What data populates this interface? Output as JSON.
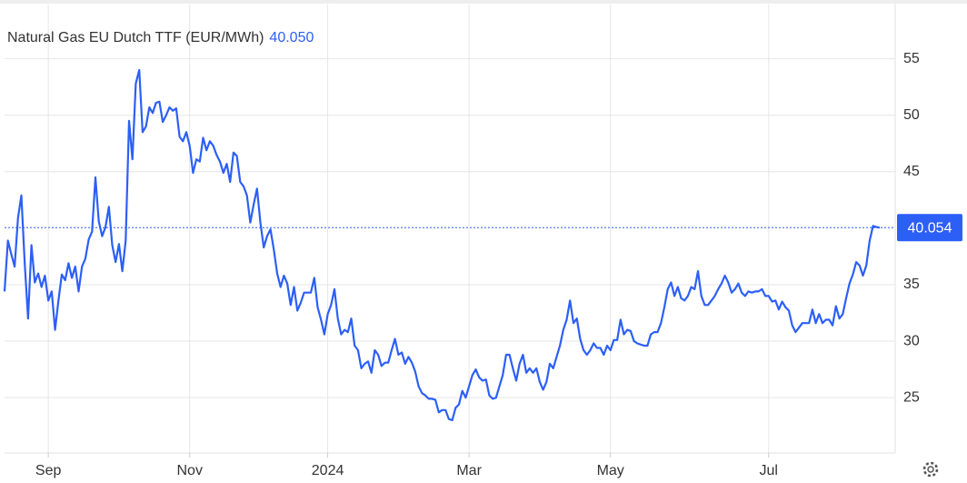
{
  "chart_data": {
    "type": "line",
    "title": "Natural Gas EU Dutch TTF (EUR/MWh)",
    "last_price": {
      "value": 40.05,
      "label": "40.050"
    },
    "price_line": {
      "value": 40.054,
      "label": "40.054"
    },
    "color": "#2c5ff6",
    "grid": true,
    "xlim": [
      0,
      260
    ],
    "xticks": [
      {
        "value": 13,
        "label": "Sep"
      },
      {
        "value": 55,
        "label": "Nov"
      },
      {
        "value": 96,
        "label": "2024"
      },
      {
        "value": 138,
        "label": "Mar"
      },
      {
        "value": 180,
        "label": "May"
      },
      {
        "value": 227,
        "label": "Jul"
      }
    ],
    "ylim": [
      20.1,
      59.8
    ],
    "yticks": [
      25,
      30,
      35,
      45,
      50,
      55
    ],
    "values": [
      34.4,
      38.9,
      37.7,
      36.6,
      40.9,
      42.9,
      36.9,
      32.0,
      38.5,
      35.2,
      36.0,
      34.8,
      35.8,
      33.6,
      34.4,
      31.0,
      33.6,
      35.9,
      35.4,
      36.9,
      35.6,
      36.6,
      34.4,
      36.6,
      37.3,
      39.0,
      39.7,
      44.5,
      40.6,
      39.3,
      40.1,
      41.9,
      38.5,
      37.0,
      38.6,
      36.2,
      38.9,
      49.5,
      46.1,
      52.8,
      54.0,
      48.5,
      49.0,
      50.7,
      50.2,
      51.1,
      51.2,
      49.4,
      50.0,
      50.7,
      50.4,
      50.6,
      48.1,
      47.7,
      48.5,
      47.3,
      44.9,
      46.1,
      45.9,
      48.0,
      46.9,
      47.7,
      47.3,
      46.5,
      45.9,
      44.9,
      45.7,
      44.1,
      46.7,
      46.4,
      44.1,
      43.7,
      42.9,
      40.5,
      42.1,
      43.5,
      40.5,
      38.3,
      39.3,
      39.9,
      38.1,
      36.0,
      34.8,
      35.8,
      35.1,
      33.2,
      34.8,
      32.7,
      33.4,
      34.3,
      34.3,
      34.3,
      35.6,
      33.0,
      31.9,
      30.6,
      32.4,
      33.2,
      34.6,
      32.0,
      30.6,
      31.0,
      30.8,
      32.0,
      29.6,
      29.2,
      27.6,
      28.0,
      28.2,
      27.2,
      29.2,
      28.8,
      27.8,
      28.1,
      28.1,
      29.2,
      30.2,
      28.8,
      29.0,
      28.0,
      28.6,
      28.1,
      27.3,
      26.0,
      25.4,
      25.2,
      24.9,
      24.9,
      24.8,
      23.7,
      23.9,
      23.9,
      23.1,
      23.0,
      24.1,
      24.4,
      25.6,
      25.0,
      26.0,
      27.0,
      27.5,
      26.8,
      26.5,
      26.6,
      25.2,
      24.9,
      25.0,
      26.0,
      27.0,
      28.8,
      28.8,
      27.6,
      26.5,
      28.0,
      28.8,
      27.2,
      27.6,
      27.2,
      27.6,
      26.4,
      25.7,
      26.4,
      28.0,
      27.6,
      28.6,
      29.6,
      31.0,
      31.9,
      33.6,
      31.6,
      32.0,
      30.2,
      29.2,
      28.8,
      29.2,
      29.8,
      29.4,
      29.4,
      28.8,
      29.6,
      29.2,
      30.1,
      30.1,
      31.9,
      30.6,
      31.0,
      30.9,
      30.0,
      29.8,
      29.7,
      29.6,
      29.6,
      30.6,
      30.8,
      30.8,
      31.6,
      33.0,
      34.6,
      35.2,
      34.0,
      34.8,
      33.8,
      33.6,
      34.0,
      34.8,
      34.6,
      36.2,
      34.0,
      33.2,
      33.2,
      33.6,
      34.0,
      34.6,
      35.1,
      35.8,
      35.2,
      34.3,
      34.6,
      35.1,
      34.3,
      34.0,
      34.4,
      34.3,
      34.4,
      34.4,
      34.6,
      34.0,
      34.0,
      33.5,
      33.6,
      32.8,
      33.5,
      33.0,
      32.7,
      31.4,
      30.8,
      31.2,
      31.6,
      31.6,
      31.6,
      32.8,
      31.6,
      32.4,
      31.6,
      31.9,
      31.9,
      31.4,
      33.1,
      32.0,
      32.4,
      33.8,
      35.1,
      35.9,
      37.0,
      36.7,
      35.8,
      36.7,
      38.9,
      40.2,
      40.1,
      40.05
    ]
  }
}
